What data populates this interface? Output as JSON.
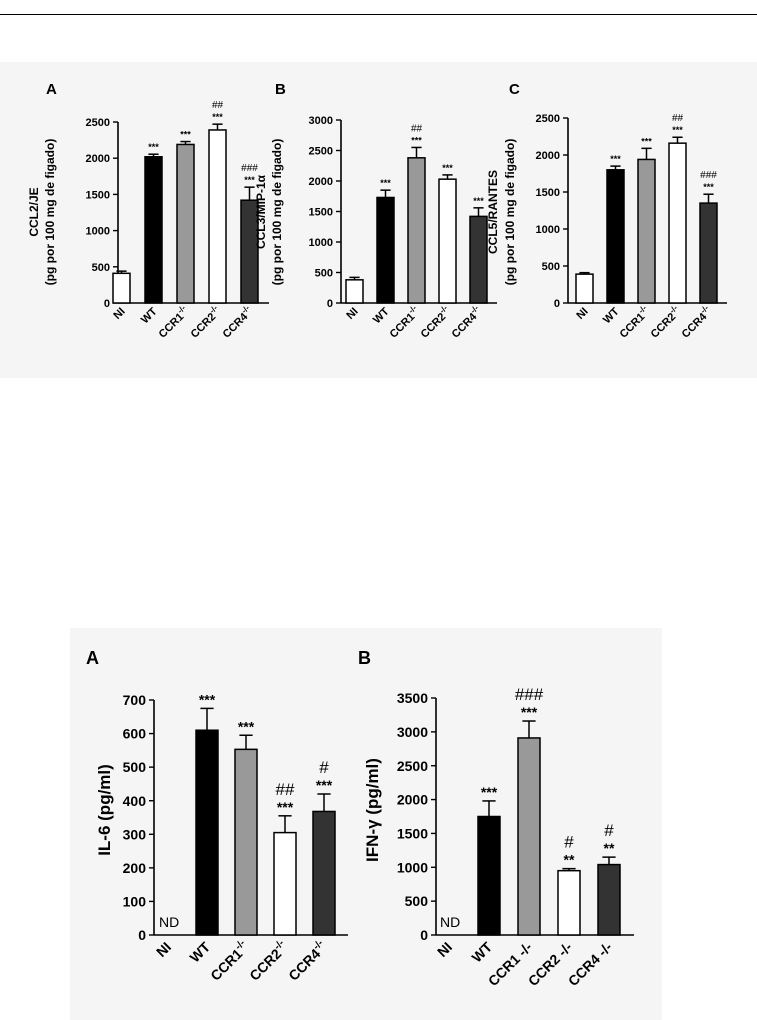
{
  "figure_top": {
    "panels": [
      {
        "letter": "A",
        "ylabel_line1": "CCL2/JE",
        "ylabel_line2": "(pg por 100 mg de figado)",
        "chart_type": "bar",
        "ylim": [
          0,
          2500
        ],
        "yticks": [
          "0",
          "500",
          "1000",
          "1500",
          "2000",
          "2500"
        ],
        "categories": [
          "NI",
          "WT",
          "CCR1",
          "CCR2",
          "CCR4"
        ],
        "category_superscripts": [
          "",
          "",
          "-/-",
          "-/-",
          "-/-"
        ],
        "values": [
          410,
          2020,
          2190,
          2390,
          1420
        ],
        "errors": [
          30,
          35,
          40,
          80,
          180
        ],
        "stars": [
          "",
          "***",
          "***",
          "***",
          "***"
        ],
        "hashes": [
          "",
          "",
          "",
          "##",
          "###"
        ],
        "fill_colors": [
          "#ffffff",
          "#000000",
          "#999999",
          "#ffffff",
          "#333333"
        ]
      },
      {
        "letter": "B",
        "ylabel_line1": "CCL3/MIP-1α",
        "ylabel_line2": "(pg por 100 mg de figado)",
        "chart_type": "bar",
        "ylim": [
          0,
          3000
        ],
        "yticks": [
          "0",
          "500",
          "1000",
          "1500",
          "2000",
          "2500",
          "3000"
        ],
        "categories": [
          "NI",
          "WT",
          "CCR1",
          "CCR2",
          "CCR4"
        ],
        "category_superscripts": [
          "",
          "",
          "-/-",
          "-/-",
          "-/-"
        ],
        "values": [
          380,
          1730,
          2380,
          2030,
          1420
        ],
        "errors": [
          40,
          120,
          170,
          70,
          140
        ],
        "stars": [
          "",
          "***",
          "***",
          "***",
          "***"
        ],
        "hashes": [
          "",
          "",
          "##",
          "",
          ""
        ],
        "fill_colors": [
          "#ffffff",
          "#000000",
          "#999999",
          "#ffffff",
          "#333333"
        ]
      },
      {
        "letter": "C",
        "ylabel_line1": "CCL5/RANTES",
        "ylabel_line2": "(pg por 100 mg de figado)",
        "chart_type": "bar",
        "ylim": [
          0,
          2500
        ],
        "yticks": [
          "0",
          "500",
          "1000",
          "1500",
          "2000",
          "2500"
        ],
        "categories": [
          "NI",
          "WT",
          "CCR1",
          "CCR2",
          "CCR4"
        ],
        "category_superscripts": [
          "",
          "",
          "-/-",
          "-/-",
          "-/-"
        ],
        "values": [
          390,
          1800,
          1940,
          2160,
          1350
        ],
        "errors": [
          20,
          50,
          150,
          80,
          120
        ],
        "stars": [
          "",
          "***",
          "***",
          "***",
          "***"
        ],
        "hashes": [
          "",
          "",
          "",
          "##",
          "###"
        ],
        "fill_colors": [
          "#ffffff",
          "#000000",
          "#999999",
          "#ffffff",
          "#333333"
        ]
      }
    ]
  },
  "figure_bottom": {
    "panels": [
      {
        "letter": "A",
        "ylabel_line1": "IL-6 (pg/ml)",
        "ylabel_line2": "",
        "chart_type": "bar",
        "ylim": [
          0,
          700
        ],
        "yticks": [
          "0",
          "100",
          "200",
          "300",
          "400",
          "500",
          "600",
          "700"
        ],
        "categories": [
          "NI",
          "WT",
          "CCR1",
          "CCR2",
          "CCR4"
        ],
        "category_superscripts": [
          "",
          "",
          "-/-",
          "-/-",
          "-/-"
        ],
        "values": [
          0,
          610,
          553,
          305,
          368
        ],
        "errors": [
          0,
          65,
          42,
          50,
          52
        ],
        "stars": [
          "",
          "***",
          "***",
          "***",
          "***"
        ],
        "hashes": [
          "",
          "",
          "",
          "##",
          "#"
        ],
        "nd_label": "ND",
        "fill_colors": [
          "#ffffff",
          "#000000",
          "#999999",
          "#ffffff",
          "#333333"
        ]
      },
      {
        "letter": "B",
        "ylabel_line1": "IFN-γ (pg/ml)",
        "ylabel_line2": "",
        "chart_type": "bar",
        "ylim": [
          0,
          3500
        ],
        "yticks": [
          "0",
          "500",
          "1000",
          "1500",
          "2000",
          "2500",
          "3000",
          "3500"
        ],
        "categories": [
          "NI",
          "WT",
          "CCR1 -/-",
          "CCR2 -/-",
          "CCR4 -/-"
        ],
        "category_superscripts": [
          "",
          "",
          "",
          "",
          ""
        ],
        "values": [
          0,
          1750,
          2910,
          950,
          1040
        ],
        "errors": [
          0,
          230,
          250,
          30,
          110
        ],
        "stars": [
          "",
          "***",
          "***",
          "**",
          "**"
        ],
        "hashes": [
          "",
          "",
          "###",
          "#",
          "#"
        ],
        "nd_label": "ND",
        "fill_colors": [
          "#ffffff",
          "#000000",
          "#999999",
          "#ffffff",
          "#333333"
        ]
      }
    ]
  },
  "chart_data": [
    {
      "type": "bar",
      "title": "A",
      "ylabel": "CCL2/JE (pg por 100 mg de figado)",
      "categories": [
        "NI",
        "WT",
        "CCR1-/-",
        "CCR2-/-",
        "CCR4-/-"
      ],
      "values": [
        410,
        2020,
        2190,
        2390,
        1420
      ],
      "errors": [
        30,
        35,
        40,
        80,
        180
      ],
      "ylim": [
        0,
        2500
      ]
    },
    {
      "type": "bar",
      "title": "B",
      "ylabel": "CCL3/MIP-1α (pg por 100 mg de figado)",
      "categories": [
        "NI",
        "WT",
        "CCR1-/-",
        "CCR2-/-",
        "CCR4-/-"
      ],
      "values": [
        380,
        1730,
        2380,
        2030,
        1420
      ],
      "errors": [
        40,
        120,
        170,
        70,
        140
      ],
      "ylim": [
        0,
        3000
      ]
    },
    {
      "type": "bar",
      "title": "C",
      "ylabel": "CCL5/RANTES (pg por 100 mg de figado)",
      "categories": [
        "NI",
        "WT",
        "CCR1-/-",
        "CCR2-/-",
        "CCR4-/-"
      ],
      "values": [
        390,
        1800,
        1940,
        2160,
        1350
      ],
      "errors": [
        20,
        50,
        150,
        80,
        120
      ],
      "ylim": [
        0,
        2500
      ]
    },
    {
      "type": "bar",
      "title": "A",
      "ylabel": "IL-6 (pg/ml)",
      "categories": [
        "NI",
        "WT",
        "CCR1-/-",
        "CCR2-/-",
        "CCR4-/-"
      ],
      "values": [
        0,
        610,
        553,
        305,
        368
      ],
      "errors": [
        0,
        65,
        42,
        50,
        52
      ],
      "ylim": [
        0,
        700
      ]
    },
    {
      "type": "bar",
      "title": "B",
      "ylabel": "IFN-γ (pg/ml)",
      "categories": [
        "NI",
        "WT",
        "CCR1 -/-",
        "CCR2 -/-",
        "CCR4 -/-"
      ],
      "values": [
        0,
        1750,
        2910,
        950,
        1040
      ],
      "errors": [
        0,
        230,
        250,
        30,
        110
      ],
      "ylim": [
        0,
        3500
      ]
    }
  ]
}
